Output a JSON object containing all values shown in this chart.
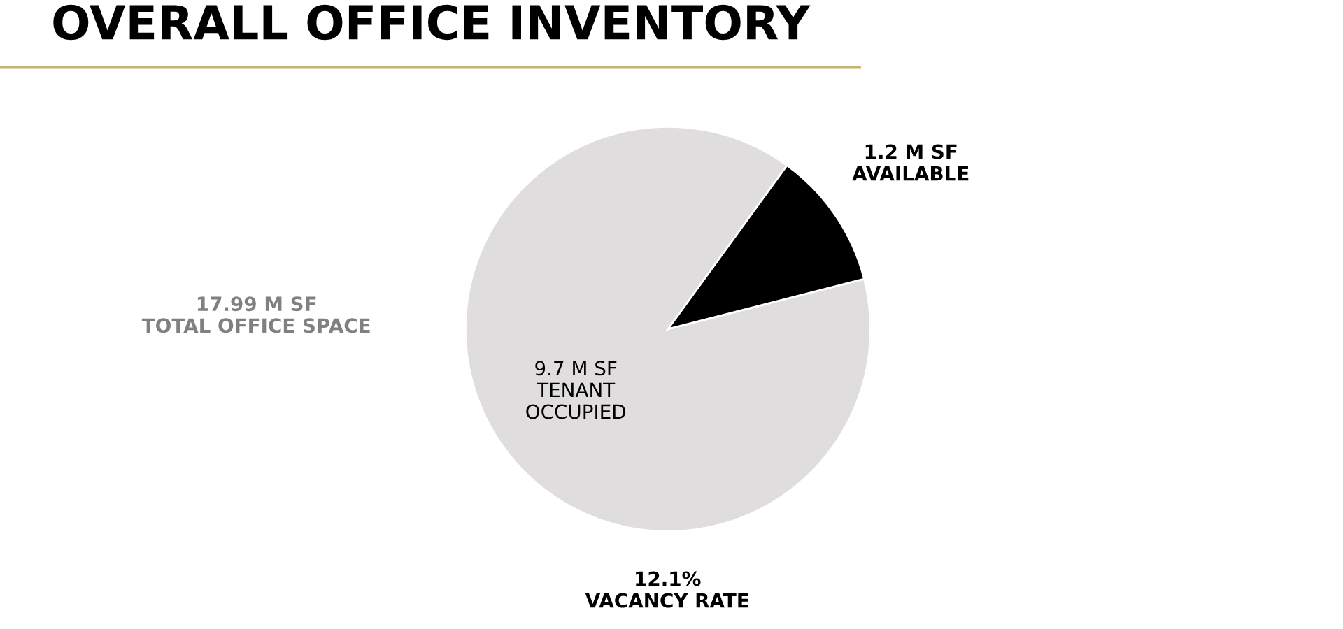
{
  "chart_data": {
    "type": "pie",
    "title": "OVERALL OFFICE INVENTORY",
    "categories": [
      "TENANT\nOCCUPIED",
      "AVAILABLE"
    ],
    "values": [
      9.7,
      1.2
    ],
    "value_labels": [
      "9.7 M SF",
      "1.2 M SF"
    ],
    "colors": [
      "#dfdddd",
      "#000000"
    ],
    "annotations": [
      "17.99 M SF\nTOTAL OFFICE SPACE",
      "12.1%\nVACANCY RATE"
    ]
  }
}
